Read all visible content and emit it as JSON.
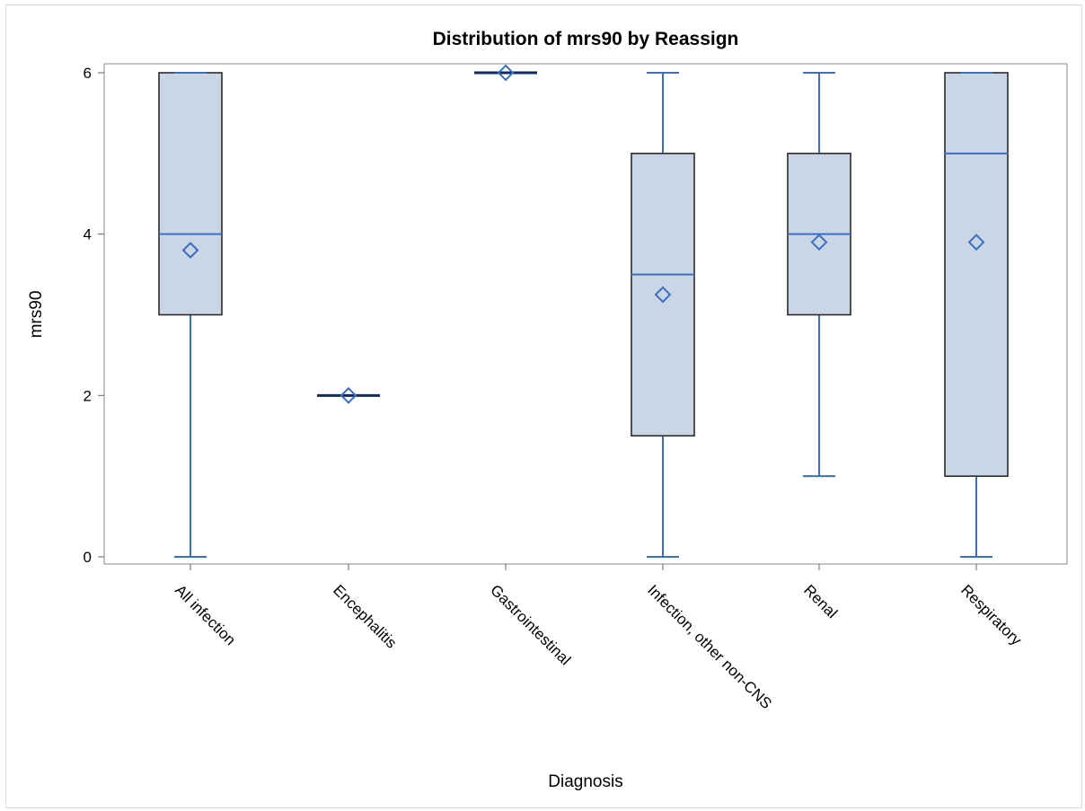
{
  "chart_data": {
    "type": "box",
    "title": "Distribution of mrs90 by Reassign",
    "xlabel": "Diagnosis",
    "ylabel": "mrs90",
    "ylim": [
      0,
      6
    ],
    "yticks": [
      "0",
      "2",
      "4",
      "6"
    ],
    "categories": [
      "All infection",
      "Encephalitis",
      "Gastrointestinal",
      "Infection, other non-CNS",
      "Renal",
      "Respiratory"
    ],
    "boxes": [
      {
        "min": 0,
        "q1": 3,
        "median": 4,
        "q3": 6,
        "max": 6,
        "mean": 3.8
      },
      {
        "min": 2,
        "q1": 2,
        "median": 2,
        "q3": 2,
        "max": 2,
        "mean": 2
      },
      {
        "min": 6,
        "q1": 6,
        "median": 6,
        "q3": 6,
        "max": 6,
        "mean": 6
      },
      {
        "min": 0,
        "q1": 1.5,
        "median": 3.5,
        "q3": 5,
        "max": 6,
        "mean": 3.25
      },
      {
        "min": 1,
        "q1": 3,
        "median": 4,
        "q3": 5,
        "max": 6,
        "mean": 3.9
      },
      {
        "min": 0,
        "q1": 1,
        "median": 5,
        "q3": 6,
        "max": 6,
        "mean": 3.9
      }
    ],
    "grid": false,
    "legend": "none",
    "colors": {
      "box_fill": "#cad6e6",
      "box_border": "#2b2b2b",
      "whisker": "#3b6fc6",
      "median": "#3b6fc6",
      "mean_marker": "#3b6fc6",
      "degenerate_line": "#0b2a6b",
      "axis": "#888888"
    }
  }
}
